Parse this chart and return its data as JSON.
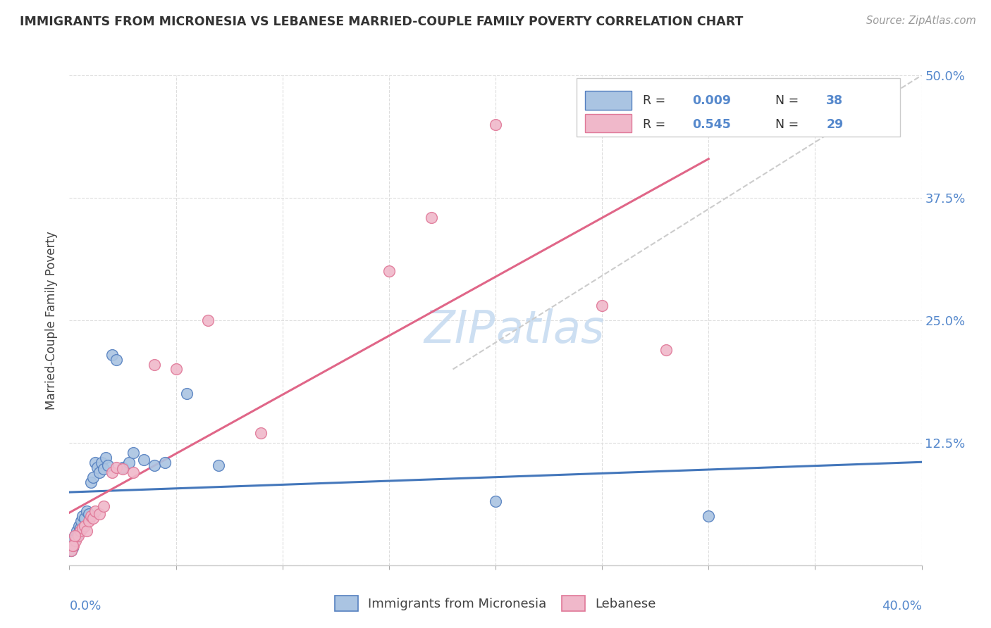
{
  "title": "IMMIGRANTS FROM MICRONESIA VS LEBANESE MARRIED-COUPLE FAMILY POVERTY CORRELATION CHART",
  "source": "Source: ZipAtlas.com",
  "ylabel": "Married-Couple Family Poverty",
  "ytick_vals": [
    0.0,
    12.5,
    25.0,
    37.5,
    50.0
  ],
  "ytick_labels": [
    "",
    "12.5%",
    "25.0%",
    "37.5%",
    "50.0%"
  ],
  "xlim": [
    0.0,
    40.0
  ],
  "ylim": [
    0.0,
    50.0
  ],
  "color_blue": "#aac4e2",
  "color_blue_edge": "#5580c0",
  "color_pink": "#f0b8ca",
  "color_pink_edge": "#e07898",
  "line_blue": "#4477bb",
  "line_pink": "#e06688",
  "line_dashed": "#cccccc",
  "watermark_color": "#c5daf0",
  "micronesia_x": [
    0.05,
    0.1,
    0.15,
    0.2,
    0.25,
    0.3,
    0.35,
    0.4,
    0.45,
    0.5,
    0.55,
    0.6,
    0.7,
    0.8,
    0.9,
    1.0,
    1.1,
    1.2,
    1.3,
    1.4,
    1.5,
    1.6,
    1.7,
    1.8,
    2.0,
    2.2,
    2.5,
    2.8,
    3.0,
    3.5,
    4.0,
    4.5,
    5.5,
    7.0,
    20.0,
    30.0,
    0.08,
    0.12
  ],
  "micronesia_y": [
    1.5,
    2.0,
    1.8,
    2.5,
    3.0,
    2.8,
    3.5,
    3.2,
    4.0,
    3.8,
    4.5,
    5.0,
    4.8,
    5.5,
    5.2,
    8.5,
    9.0,
    10.5,
    10.0,
    9.5,
    10.5,
    9.8,
    11.0,
    10.2,
    21.5,
    21.0,
    10.0,
    10.5,
    11.5,
    10.8,
    10.2,
    10.5,
    17.5,
    10.2,
    6.5,
    5.0,
    1.5,
    2.5
  ],
  "lebanese_x": [
    0.1,
    0.2,
    0.3,
    0.4,
    0.5,
    0.6,
    0.7,
    0.8,
    0.9,
    1.0,
    1.1,
    1.2,
    1.4,
    1.6,
    2.0,
    2.2,
    2.5,
    3.0,
    4.0,
    5.0,
    6.5,
    9.0,
    15.0,
    17.0,
    20.0,
    25.0,
    28.0,
    0.15,
    0.25
  ],
  "lebanese_y": [
    1.5,
    2.0,
    2.5,
    3.0,
    3.5,
    3.8,
    4.0,
    3.5,
    4.5,
    5.0,
    4.8,
    5.5,
    5.2,
    6.0,
    9.5,
    10.0,
    9.8,
    9.5,
    20.5,
    20.0,
    25.0,
    13.5,
    30.0,
    35.5,
    45.0,
    26.5,
    22.0,
    2.0,
    3.0
  ]
}
